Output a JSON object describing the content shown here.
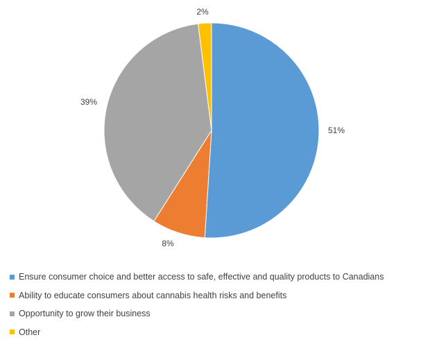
{
  "chart_data": {
    "type": "pie",
    "title": "",
    "series": [
      {
        "name": "Ensure consumer choice and better access to safe, effective and quality products to Canadians",
        "value": 51,
        "label": "51%",
        "color": "#5B9BD5"
      },
      {
        "name": "Ability to educate consumers about cannabis health risks and benefits",
        "value": 8,
        "label": "8%",
        "color": "#ED7D31"
      },
      {
        "name": "Opportunity to grow their business",
        "value": 39,
        "label": "39%",
        "color": "#A5A5A5"
      },
      {
        "name": "Other",
        "value": 2,
        "label": "2%",
        "color": "#FFC000"
      }
    ],
    "legend_position": "bottom-left"
  }
}
